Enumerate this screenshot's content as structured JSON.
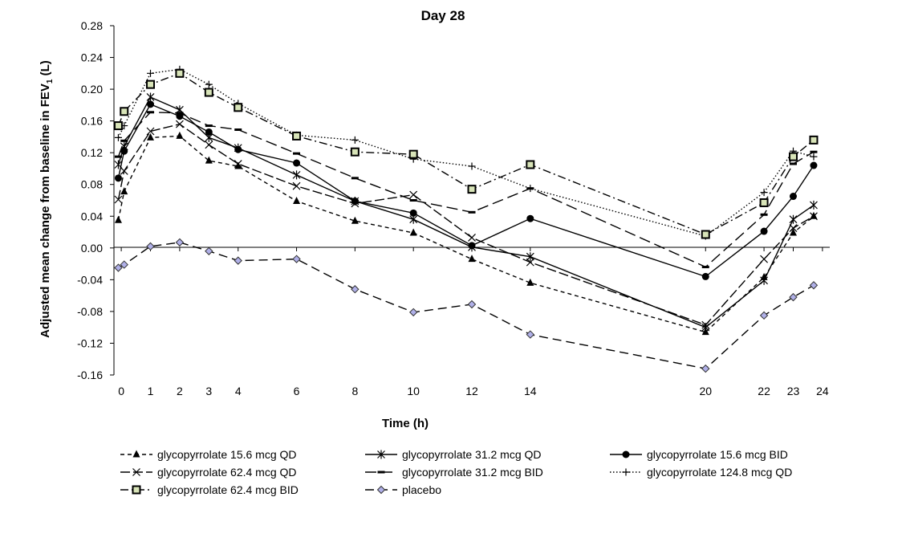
{
  "chart_data": {
    "type": "line",
    "title": "Day 28",
    "xlabel": "Time (h)",
    "ylabel_main": "Adjusted mean change from baseline in FEV",
    "ylabel_sub": "1",
    "ylabel_unit": " (L)",
    "ylim": [
      -0.16,
      0.28
    ],
    "yticks": [
      "0.28",
      "0.24",
      "0.20",
      "0.16",
      "0.12",
      "0.08",
      "0.04",
      "0.00",
      "-0.04",
      "-0.08",
      "-0.12",
      "-0.16"
    ],
    "ytick_values": [
      0.28,
      0.24,
      0.2,
      0.16,
      0.12,
      0.08,
      0.04,
      0.0,
      -0.04,
      -0.08,
      -0.12,
      -0.16
    ],
    "xticks": [
      "0",
      "1",
      "2",
      "3",
      "4",
      "6",
      "8",
      "10",
      "12",
      "14",
      "20",
      "22",
      "23",
      "24"
    ],
    "xtick_values": [
      0,
      1,
      2,
      3,
      4,
      6,
      8,
      10,
      12,
      14,
      20,
      22,
      23,
      24
    ],
    "xlim": [
      -0.25,
      24.25
    ],
    "grid": false,
    "legend_position": "bottom",
    "series": [
      {
        "name": "glycopyrrolate 15.6 mcg QD",
        "marker": "triangle",
        "dash": "5,4",
        "x": [
          -0.1,
          0.1,
          1,
          2,
          3,
          4,
          6,
          8,
          10,
          12,
          14,
          20,
          22,
          23,
          23.7
        ],
        "y": [
          0.035,
          0.071,
          0.139,
          0.141,
          0.11,
          0.103,
          0.059,
          0.034,
          0.019,
          -0.014,
          -0.044,
          -0.106,
          -0.037,
          0.019,
          0.04
        ]
      },
      {
        "name": "glycopyrrolate 31.2 mcg QD",
        "marker": "asterisk",
        "dash": "",
        "x": [
          -0.1,
          0.1,
          1,
          2,
          3,
          4,
          6,
          8,
          10,
          12,
          14,
          20,
          22,
          23,
          23.7
        ],
        "y": [
          0.105,
          0.128,
          0.19,
          0.174,
          0.139,
          0.126,
          0.092,
          0.059,
          0.036,
          0.001,
          -0.011,
          -0.1,
          -0.041,
          0.036,
          0.054
        ]
      },
      {
        "name": "glycopyrrolate 15.6 mcg BID",
        "marker": "circle",
        "dash": "",
        "x": [
          -0.1,
          0.1,
          1,
          2,
          3,
          4,
          6,
          8,
          10,
          12,
          14,
          20,
          22,
          23,
          23.7
        ],
        "y": [
          0.088,
          0.122,
          0.181,
          0.166,
          0.146,
          0.124,
          0.107,
          0.059,
          0.044,
          0.003,
          0.037,
          -0.036,
          0.021,
          0.065,
          0.104
        ]
      },
      {
        "name": "glycopyrrolate 62.4 mcg QD",
        "marker": "cross",
        "dash": "12,4",
        "x": [
          -0.1,
          0.1,
          1,
          2,
          3,
          4,
          6,
          8,
          10,
          12,
          14,
          20,
          22,
          23,
          23.7
        ],
        "y": [
          0.061,
          0.097,
          0.147,
          0.156,
          0.13,
          0.106,
          0.078,
          0.056,
          0.067,
          0.013,
          -0.018,
          -0.097,
          -0.014,
          0.025,
          0.04
        ]
      },
      {
        "name": "glycopyrrolate 31.2 mcg BID",
        "marker": "dash",
        "dash": "14,6",
        "x": [
          -0.1,
          0.1,
          1,
          2,
          3,
          4,
          6,
          8,
          10,
          12,
          14,
          20,
          22,
          23,
          23.7
        ],
        "y": [
          0.115,
          0.135,
          0.171,
          0.17,
          0.154,
          0.149,
          0.119,
          0.088,
          0.06,
          0.045,
          0.075,
          -0.024,
          0.042,
          0.106,
          0.121
        ]
      },
      {
        "name": "glycopyrrolate 124.8 mcg QD",
        "marker": "plus",
        "dash": "1.5,2.5",
        "x": [
          -0.1,
          0.1,
          1,
          2,
          3,
          4,
          6,
          8,
          10,
          12,
          14,
          20,
          22,
          23,
          23.7
        ],
        "y": [
          0.139,
          0.154,
          0.22,
          0.225,
          0.206,
          0.182,
          0.142,
          0.136,
          0.112,
          0.103,
          0.075,
          0.015,
          0.07,
          0.122,
          0.115
        ]
      },
      {
        "name": "glycopyrrolate 62.4 mcg BID",
        "marker": "square",
        "dash": "10,4,2,4",
        "x": [
          -0.1,
          0.1,
          1,
          2,
          3,
          4,
          6,
          8,
          10,
          12,
          14,
          20,
          22,
          23,
          23.7
        ],
        "y": [
          0.154,
          0.172,
          0.206,
          0.22,
          0.196,
          0.177,
          0.141,
          0.121,
          0.118,
          0.074,
          0.105,
          0.017,
          0.057,
          0.115,
          0.136
        ]
      },
      {
        "name": "placebo",
        "marker": "diamond",
        "dash": "11,6",
        "x": [
          -0.1,
          0.1,
          1,
          2,
          3,
          4,
          6,
          8,
          10,
          12,
          14,
          20,
          22,
          23,
          23.7
        ],
        "y": [
          -0.025,
          -0.021,
          0.002,
          0.007,
          -0.004,
          -0.016,
          -0.014,
          -0.052,
          -0.081,
          -0.071,
          -0.109,
          -0.152,
          -0.085,
          -0.062,
          -0.047
        ]
      }
    ]
  }
}
